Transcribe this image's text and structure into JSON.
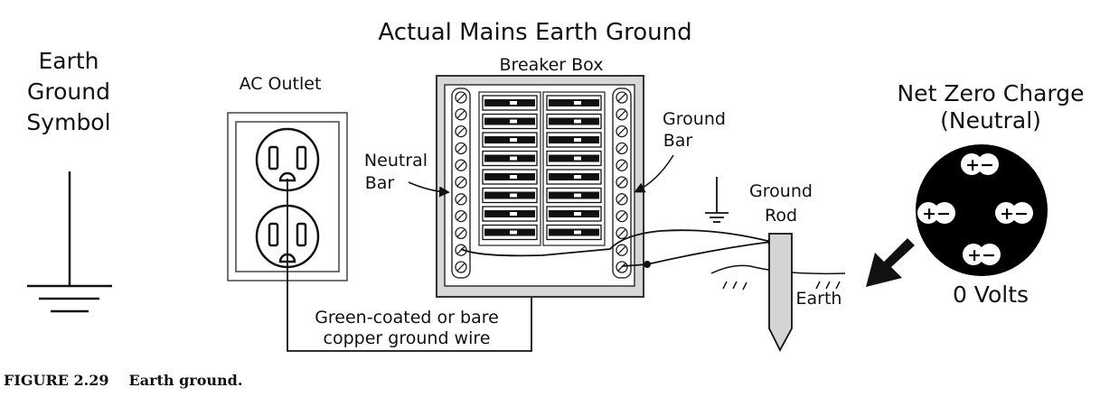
{
  "diagram": {
    "title": "Actual Mains Earth Ground",
    "symbol_label": [
      "Earth",
      "Ground",
      "Symbol"
    ],
    "outlet_label": "AC Outlet",
    "breaker_label": "Breaker Box",
    "neutral_bar_label": [
      "Neutral",
      "Bar"
    ],
    "ground_bar_label": [
      "Ground",
      "Bar"
    ],
    "ground_rod_label": [
      "Ground",
      "Rod"
    ],
    "earth_label": "Earth",
    "wire_label": [
      "Green-coated or bare",
      "copper ground wire"
    ],
    "net_charge_label": [
      "Net Zero Charge",
      "(Neutral)"
    ],
    "volts_label": "0 Volts",
    "charge_symbol": "+−"
  },
  "caption": {
    "number": "FIGURE 2.29",
    "text": "Earth ground."
  }
}
